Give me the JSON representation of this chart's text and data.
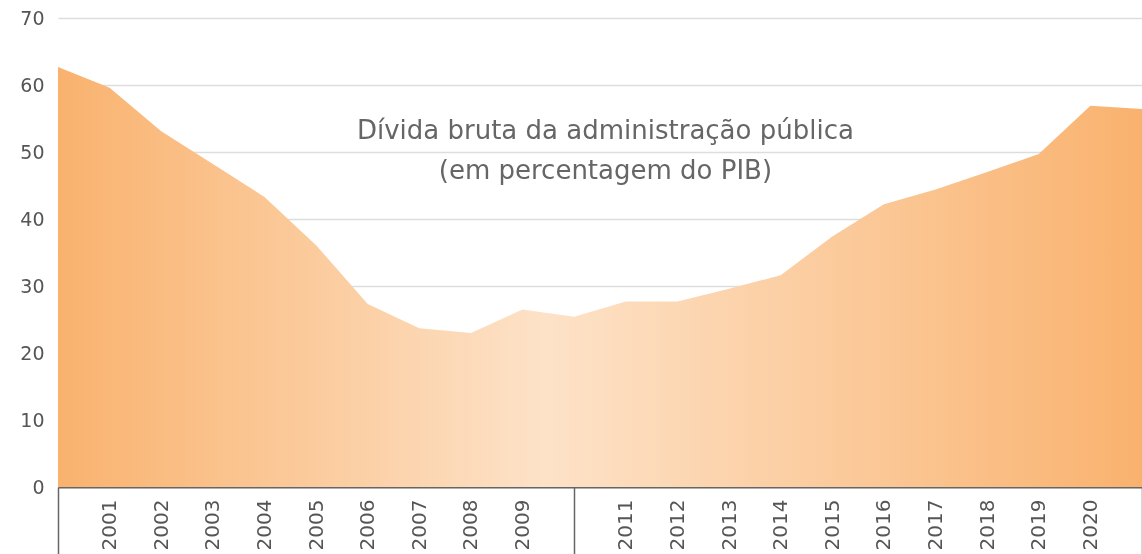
{
  "chart_data": {
    "type": "area",
    "title": "Dívida bruta da administração pública\n(em percentagem do PIB)",
    "categories": [
      null,
      "2001",
      "2002",
      "2003",
      "2004",
      "2005",
      "2006",
      "2007",
      "2008",
      "2009",
      null,
      "2011",
      "2012",
      "2013",
      "2014",
      "2015",
      "2016",
      "2017",
      "2018",
      "2019",
      "2020",
      null
    ],
    "values": [
      62.7,
      59.6,
      53.1,
      48.2,
      43.3,
      36.1,
      27.3,
      23.7,
      23.0,
      26.5,
      25.4,
      27.7,
      27.7,
      29.6,
      31.6,
      37.4,
      42.2,
      44.4,
      47.0,
      49.7,
      56.9,
      56.4
    ],
    "color": "#f9b26e",
    "ylim": [
      0,
      70
    ],
    "yticks": [
      0,
      10,
      20,
      30,
      40,
      50,
      60,
      70
    ],
    "grid": "y"
  }
}
